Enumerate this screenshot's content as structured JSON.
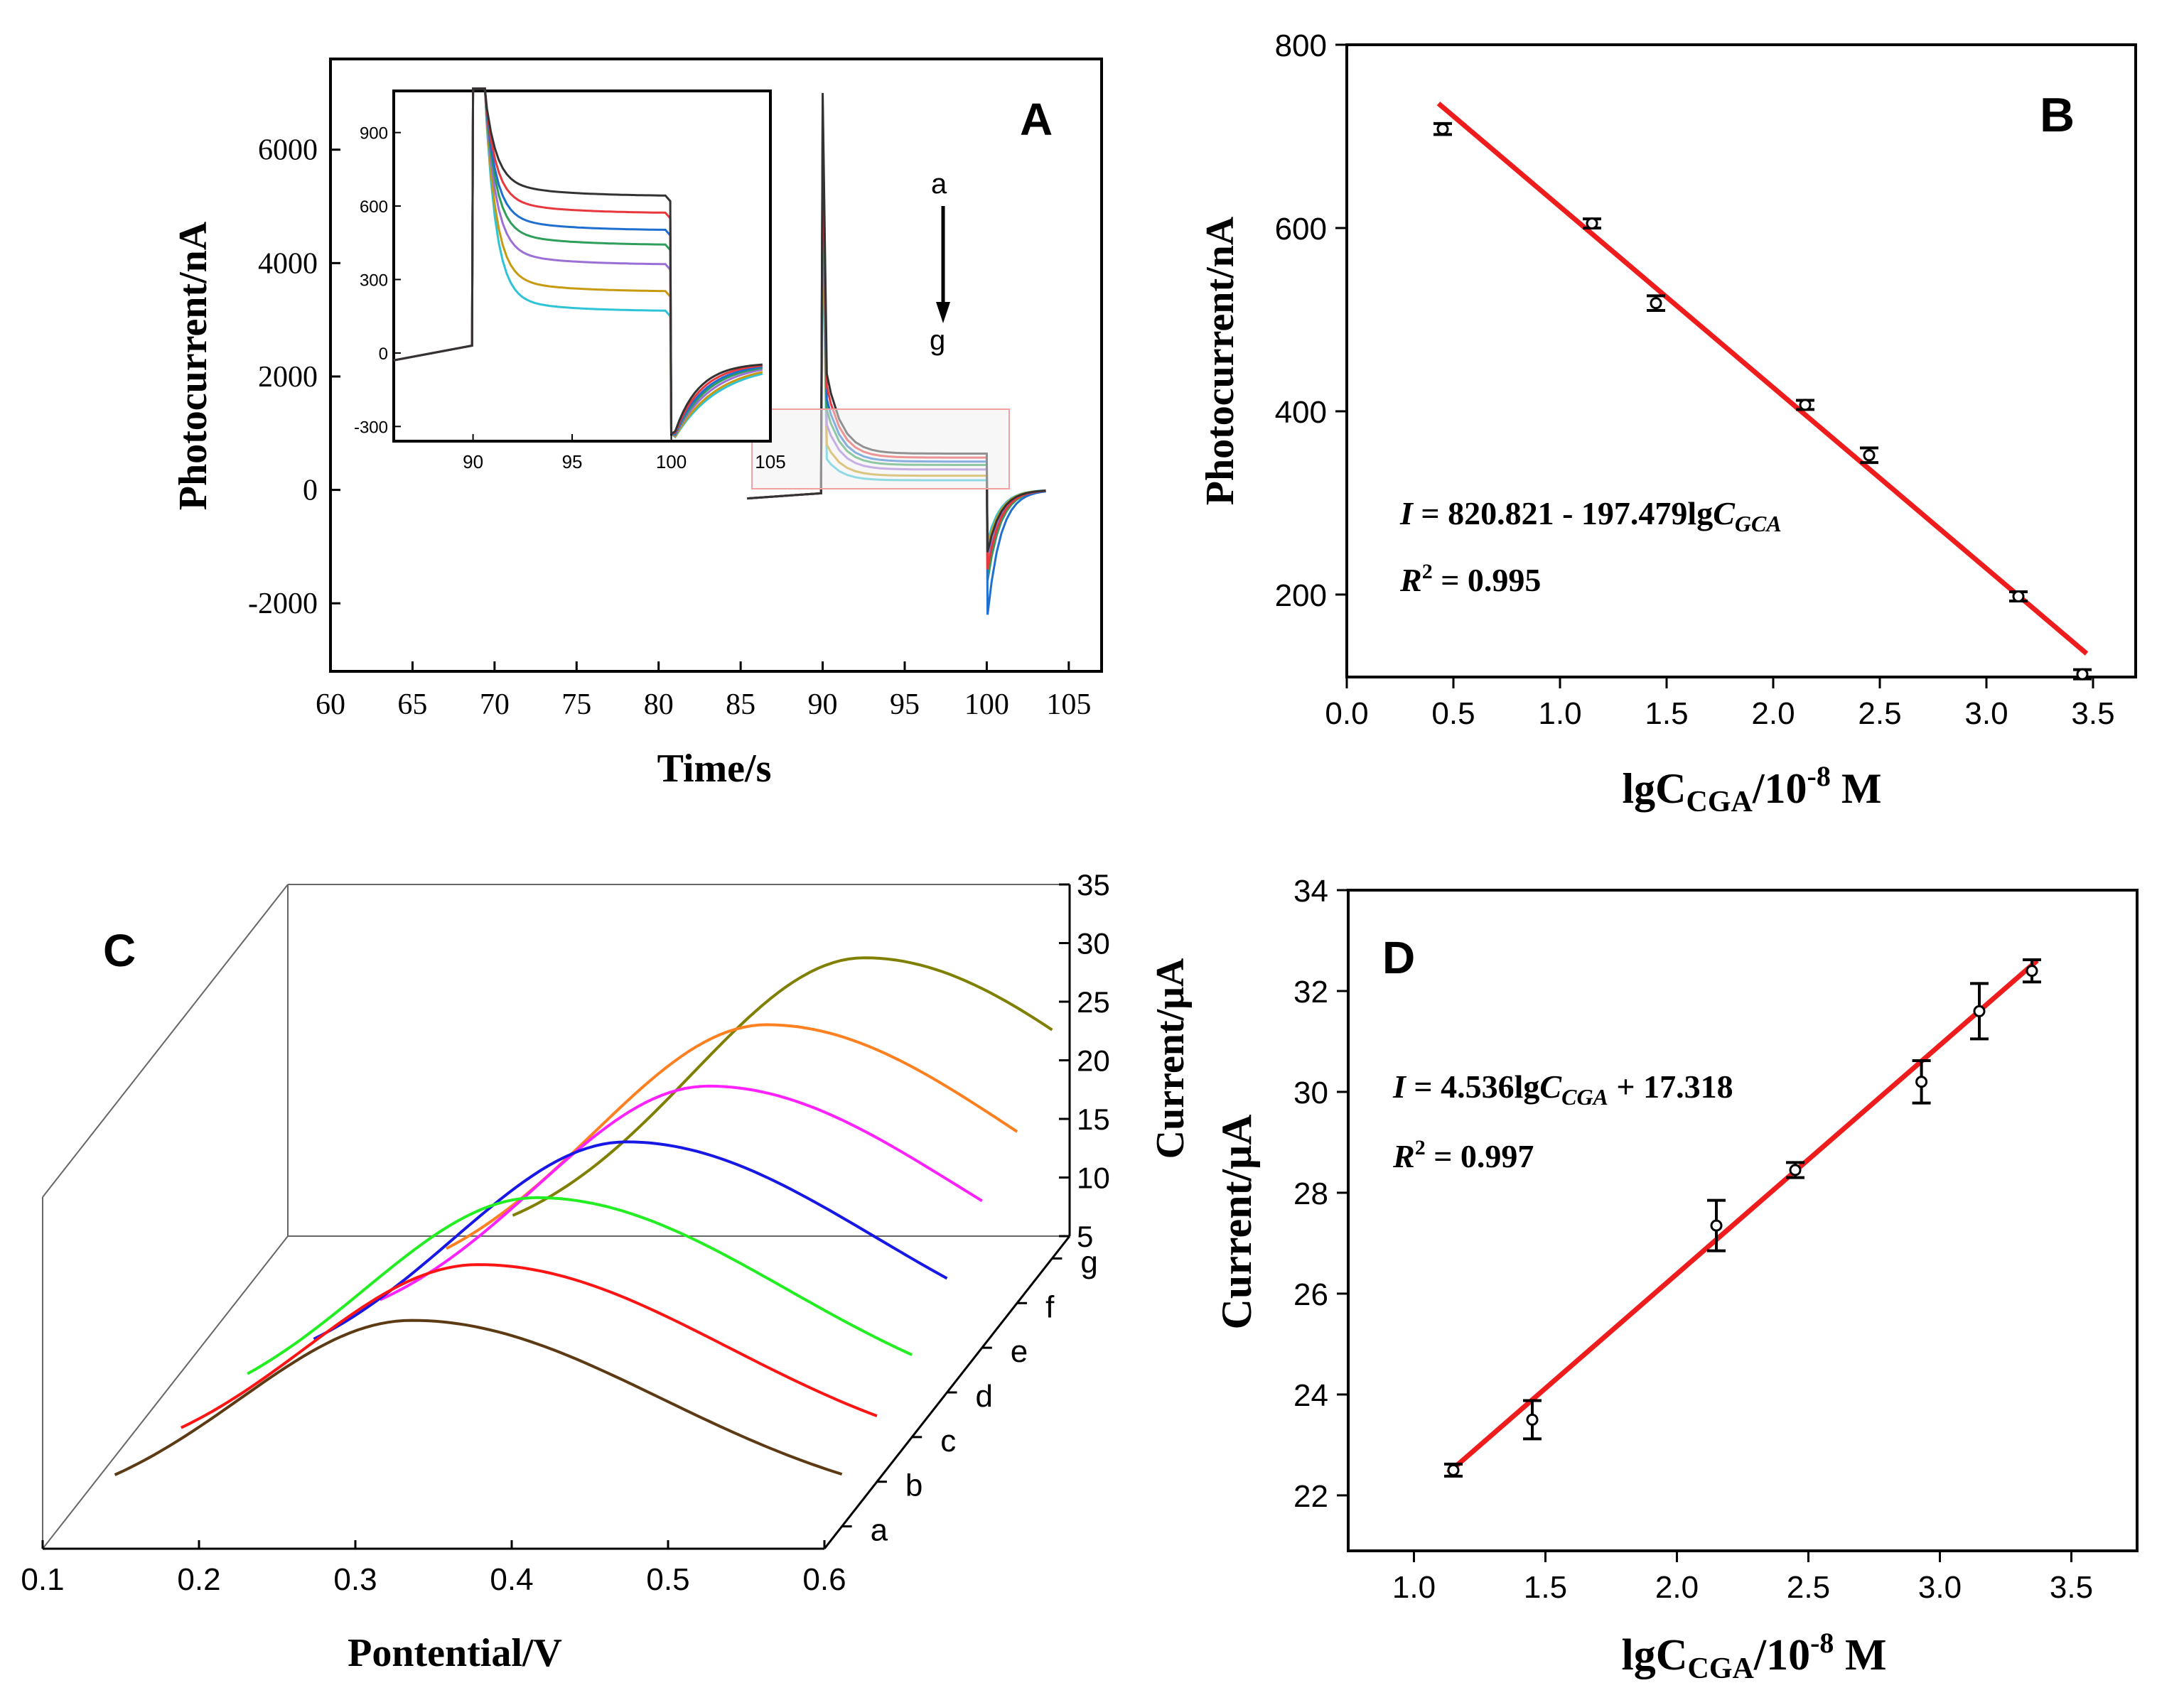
{
  "chart_data": [
    {
      "panel": "A",
      "type": "line",
      "title": "A",
      "xlabel": "Time/s",
      "ylabel": "Photocurrent/nA",
      "xlim": [
        60,
        107
      ],
      "ylim": [
        -3200,
        7600
      ],
      "xticks": [
        "60",
        "65",
        "70",
        "75",
        "80",
        "85",
        "90",
        "95",
        "100",
        "105"
      ],
      "yticks": [
        "-2000",
        "0",
        "2000",
        "4000",
        "6000"
      ],
      "annotation_top": "a",
      "annotation_bottom": "g",
      "series": [
        {
          "name": "a",
          "color": "#333333",
          "plateau": 640,
          "spike": 7000,
          "dip": -1100
        },
        {
          "name": "b",
          "color": "#e8383d",
          "plateau": 570,
          "spike": 6400,
          "dip": -1400
        },
        {
          "name": "c",
          "color": "#1f6fd1",
          "plateau": 500,
          "spike": 6800,
          "dip": -2200
        },
        {
          "name": "d",
          "color": "#2e9e5a",
          "plateau": 440,
          "spike": 6000,
          "dip": -1600
        },
        {
          "name": "e",
          "color": "#9a6fd6",
          "plateau": 360,
          "spike": 5600,
          "dip": -1300
        },
        {
          "name": "f",
          "color": "#c79a10",
          "plateau": 250,
          "spike": 5200,
          "dip": -1000
        },
        {
          "name": "g",
          "color": "#2ec4d6",
          "plateau": 170,
          "spike": 4800,
          "dip": -900
        }
      ],
      "inset": {
        "xlim": [
          86,
          105
        ],
        "ylim": [
          -360,
          1070
        ],
        "xticks": [
          "90",
          "95",
          "100",
          "105"
        ],
        "yticks": [
          "-300",
          "0",
          "300",
          "600",
          "900"
        ]
      }
    },
    {
      "panel": "B",
      "type": "scatter",
      "title": "B",
      "xlabel": "lgCCGA/10-8 M",
      "xlabel_parts": [
        "lgC",
        "CGA",
        "/10",
        "-8",
        " M"
      ],
      "ylabel": "Photocurrent/nA",
      "xlim": [
        0,
        3.7
      ],
      "ylim": [
        110,
        800
      ],
      "xticks": [
        "0.0",
        "0.5",
        "1.0",
        "1.5",
        "2.0",
        "2.5",
        "3.0",
        "3.5"
      ],
      "yticks": [
        "200",
        "400",
        "600",
        "800"
      ],
      "x": [
        0.45,
        1.15,
        1.45,
        2.15,
        2.45,
        3.15,
        3.45
      ],
      "y": [
        708,
        605,
        518,
        407,
        352,
        198,
        113
      ],
      "err": [
        6,
        5,
        8,
        5,
        8,
        5,
        5
      ],
      "fit": {
        "intercept": 820.821,
        "slope": -197.479,
        "x_range": [
          0.45,
          3.45
        ],
        "color": "#ee1c1c"
      },
      "equation": {
        "lhs": "I",
        "rest": " = 820.821 - 197.479lg",
        "var": "C",
        "sub": "GCA"
      },
      "r2": {
        "lhs": "R",
        "sup": "2",
        "rest": " = 0.995"
      },
      "title_color": "#000000"
    },
    {
      "panel": "C",
      "type": "line",
      "title": "C",
      "xlabel": "Pontential/V",
      "ylabel": "Current/μA",
      "xlim": [
        0.1,
        0.6
      ],
      "zlim": [
        5,
        35
      ],
      "xticks": [
        "0.1",
        "0.2",
        "0.3",
        "0.4",
        "0.5",
        "0.6"
      ],
      "zticks": [
        "5",
        "10",
        "15",
        "20",
        "25",
        "30",
        "35"
      ],
      "depth_labels": [
        "a",
        "b",
        "c",
        "d",
        "e",
        "f",
        "g"
      ],
      "series": [
        {
          "name": "a",
          "color": "#5c3a14",
          "peak_potential": 0.325,
          "peak_current": 23.5
        },
        {
          "name": "b",
          "color": "#ff1414",
          "peak_potential": 0.345,
          "peak_current": 24.5
        },
        {
          "name": "c",
          "color": "#22ee22",
          "peak_potential": 0.36,
          "peak_current": 26.5
        },
        {
          "name": "d",
          "color": "#1717e6",
          "peak_potential": 0.395,
          "peak_current": 27.5
        },
        {
          "name": "e",
          "color": "#ff22ff",
          "peak_potential": 0.425,
          "peak_current": 28.5
        },
        {
          "name": "f",
          "color": "#ff8020",
          "peak_potential": 0.44,
          "peak_current": 30.0
        },
        {
          "name": "g",
          "color": "#808000",
          "peak_potential": 0.48,
          "peak_current": 32.0
        }
      ]
    },
    {
      "panel": "D",
      "type": "scatter",
      "title": "D",
      "xlabel": "lgCCGA/10-8 M",
      "xlabel_parts": [
        "lgC",
        "CGA",
        "/10",
        "-8",
        " M"
      ],
      "ylabel": "Current/μA",
      "xlim": [
        0.75,
        3.75
      ],
      "ylim": [
        20.9,
        34
      ],
      "xticks": [
        "1.0",
        "1.5",
        "2.0",
        "2.5",
        "3.0",
        "3.5"
      ],
      "yticks": [
        "22",
        "24",
        "26",
        "28",
        "30",
        "32",
        "34"
      ],
      "x": [
        1.15,
        1.45,
        2.15,
        2.45,
        2.93,
        3.15,
        3.35
      ],
      "y": [
        22.5,
        23.5,
        27.35,
        28.45,
        30.2,
        31.6,
        32.4
      ],
      "err": [
        0.12,
        0.38,
        0.5,
        0.15,
        0.42,
        0.55,
        0.22
      ],
      "fit": {
        "intercept": 17.318,
        "slope": 4.536,
        "x_range": [
          1.15,
          3.35
        ],
        "color": "#ee1c1c"
      },
      "equation": {
        "lhs": "I",
        "rest": " = 4.536lg",
        "var": "C",
        "sub": "CGA",
        "tail": " + 17.318"
      },
      "r2": {
        "lhs": "R",
        "sup": "2",
        "rest": " = 0.997"
      }
    }
  ]
}
